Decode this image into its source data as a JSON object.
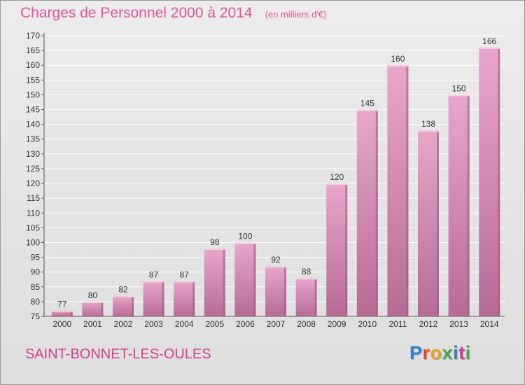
{
  "header": {
    "title": "Charges de Personnel 2000 à 2014",
    "subtitle": "(en milliers d'€)"
  },
  "footer": {
    "commune": "SAINT-BONNET-LES-OULES",
    "brand": "Proxiti",
    "brand_colors": [
      "#2f7fd0",
      "#e8452a",
      "#f0a020",
      "#47a84a",
      "#2f7fd0",
      "#d03a9a",
      "#47a84a"
    ]
  },
  "colors": {
    "bar_top": "#e9a6cb",
    "bar_bottom": "#b66b95",
    "bar_side": "#a05a82",
    "title": "#e0559a",
    "commune": "#d3408c",
    "grid": "#ffffff"
  },
  "chart_data": {
    "type": "bar",
    "title": "Charges de Personnel 2000 à 2014",
    "subtitle": "(en milliers d'€)",
    "xlabel": "",
    "ylabel": "",
    "categories": [
      "2000",
      "2001",
      "2002",
      "2003",
      "2004",
      "2005",
      "2006",
      "2007",
      "2008",
      "2009",
      "2010",
      "2011",
      "2012",
      "2013",
      "2014"
    ],
    "values": [
      77,
      80,
      82,
      87,
      87,
      98,
      100,
      92,
      88,
      120,
      145,
      160,
      138,
      150,
      166
    ],
    "ylim": [
      75,
      170
    ],
    "yticks": [
      75,
      80,
      85,
      90,
      95,
      100,
      105,
      110,
      115,
      120,
      125,
      130,
      135,
      140,
      145,
      150,
      155,
      160,
      165,
      170
    ],
    "grid": true,
    "legend": "none"
  }
}
